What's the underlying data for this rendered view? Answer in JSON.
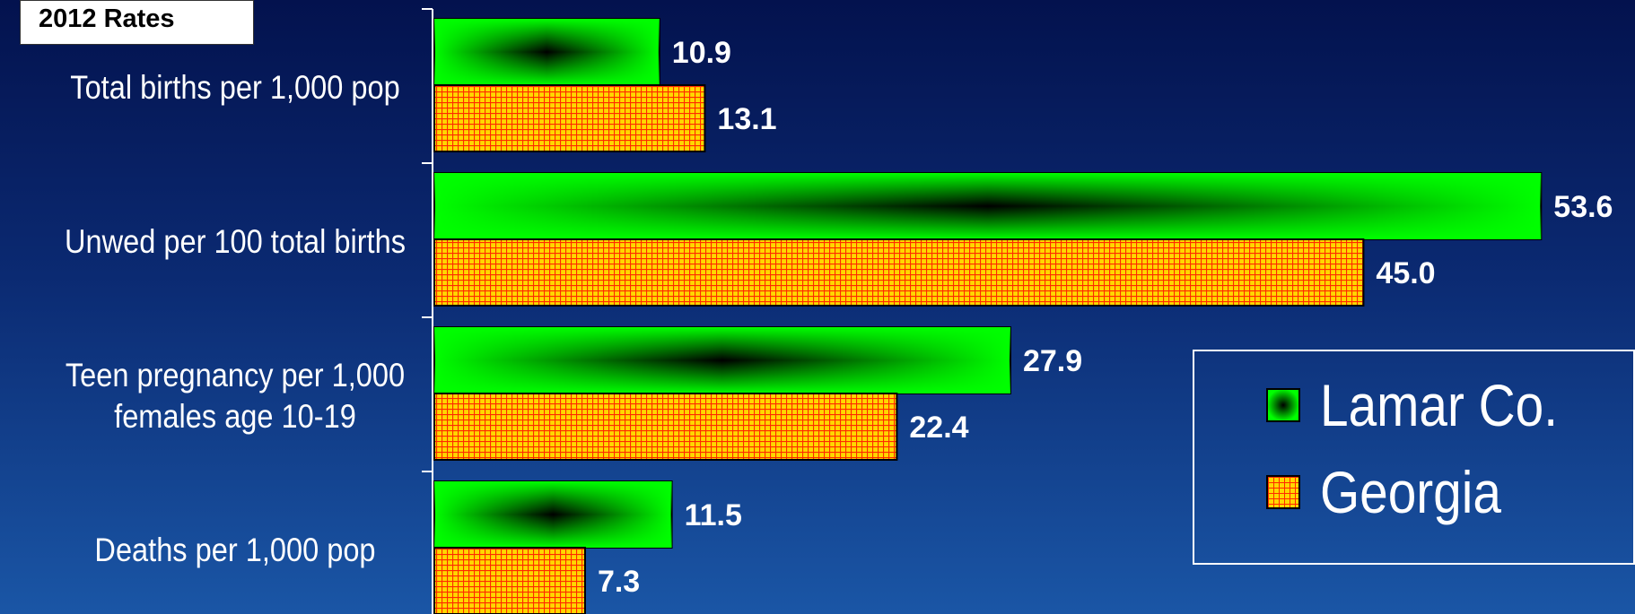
{
  "chart_data": {
    "type": "bar",
    "orientation": "horizontal",
    "title": "2012 Rates",
    "categories": [
      [
        "Total births per 1,000 pop"
      ],
      [
        "Unwed per 100 total births"
      ],
      [
        "Teen pregnancy per 1,000",
        "females age 10-19"
      ],
      [
        "Deaths per 1,000 pop"
      ]
    ],
    "series": [
      {
        "name": "Lamar Co.",
        "values": [
          10.9,
          53.6,
          27.9,
          11.5
        ],
        "labels": [
          "10.9",
          "53.6",
          "27.9",
          "11.5"
        ],
        "color": "#00ee00"
      },
      {
        "name": "Georgia",
        "values": [
          13.1,
          45.0,
          22.4,
          7.3
        ],
        "labels": [
          "13.1",
          "45.0",
          "22.4",
          "7.3"
        ],
        "color": "#ffd700"
      }
    ],
    "xlim": [
      0,
      54.5
    ],
    "legend": "right",
    "grid": false
  }
}
